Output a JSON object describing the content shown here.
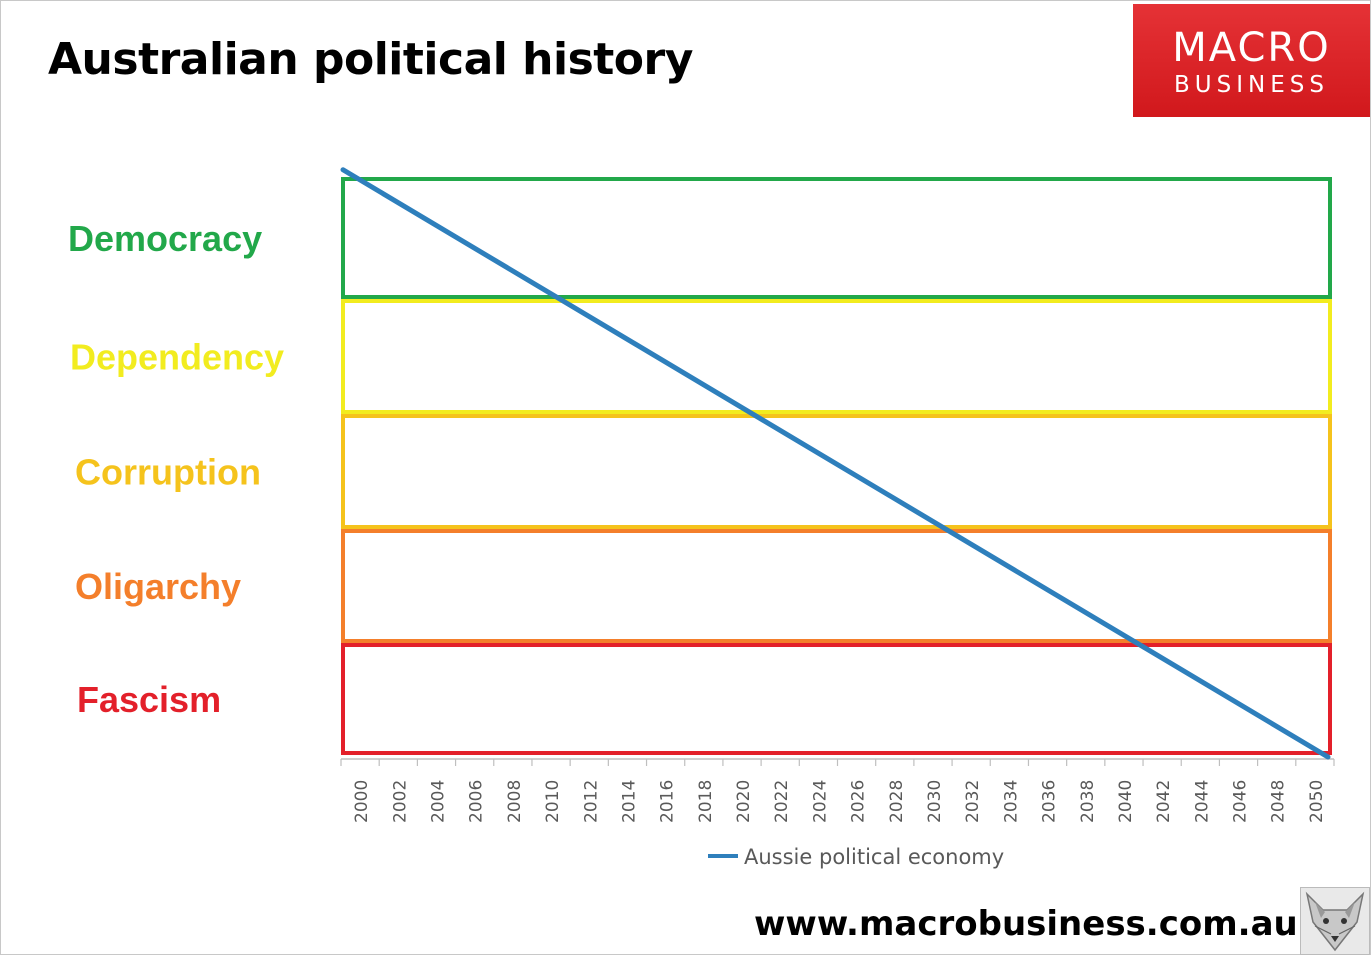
{
  "page": {
    "title": "Australian political history",
    "logo_line1": "MACRO",
    "logo_line2": "BUSINESS",
    "website": "www.macrobusiness.com.au"
  },
  "chart_data": {
    "type": "line",
    "title": "Australian political history",
    "xlabel": "",
    "ylabel": "",
    "x_ticks": [
      "2000",
      "2002",
      "2004",
      "2006",
      "2008",
      "2010",
      "2012",
      "2014",
      "2016",
      "2018",
      "2020",
      "2022",
      "2024",
      "2026",
      "2028",
      "2030",
      "2032",
      "2034",
      "2036",
      "2038",
      "2040",
      "2042",
      "2044",
      "2046",
      "2048",
      "2050"
    ],
    "xlim": [
      2000,
      2050
    ],
    "bands": [
      {
        "label": "Democracy",
        "color": "#22a84a"
      },
      {
        "label": "Dependency",
        "color": "#f2ec1f"
      },
      {
        "label": "Corruption",
        "color": "#f5c31c"
      },
      {
        "label": "Oligarchy",
        "color": "#f47f2b"
      },
      {
        "label": "Fascism",
        "color": "#e3202a"
      }
    ],
    "series": [
      {
        "name": "Aussie political economy",
        "color": "#2e7fbc",
        "x": [
          2000,
          2050
        ],
        "y": [
          5.08,
          0.0
        ]
      }
    ],
    "legend": "bottom"
  },
  "icons": {
    "fox": "fox-emblem-icon"
  }
}
